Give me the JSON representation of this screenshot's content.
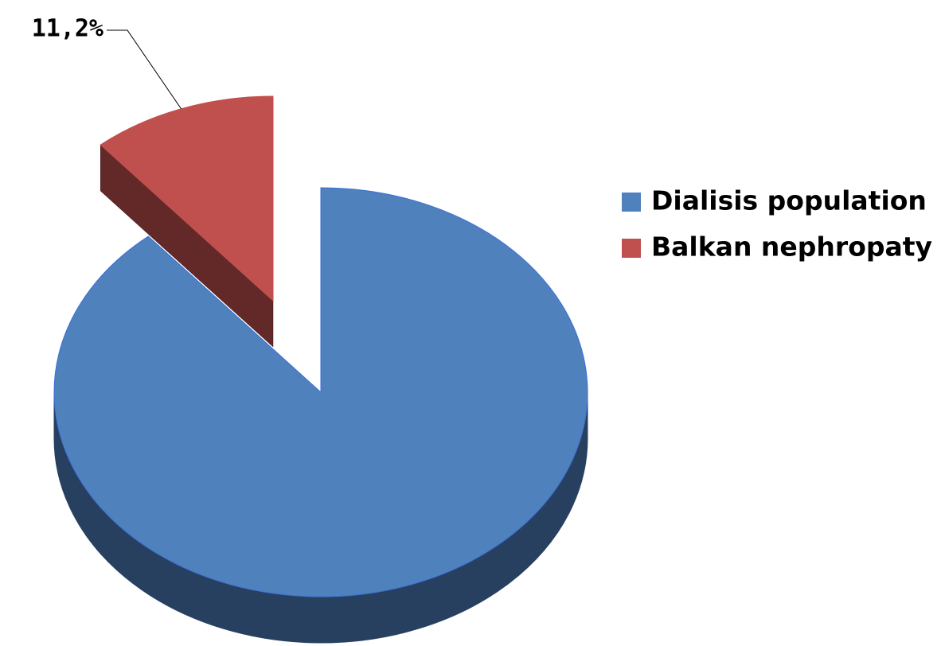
{
  "chart_data": {
    "type": "pie",
    "categories": [
      "Dialisis population",
      "Balkan nephropaty"
    ],
    "values": [
      88.8,
      11.2
    ],
    "value_labels": [
      null,
      "11,2%"
    ],
    "colors": [
      "#4f81bd",
      "#c0504d"
    ],
    "side_colors": [
      "#284060",
      "#632828"
    ],
    "legend": "right",
    "exploded": [
      false,
      true
    ],
    "three_d": true
  }
}
